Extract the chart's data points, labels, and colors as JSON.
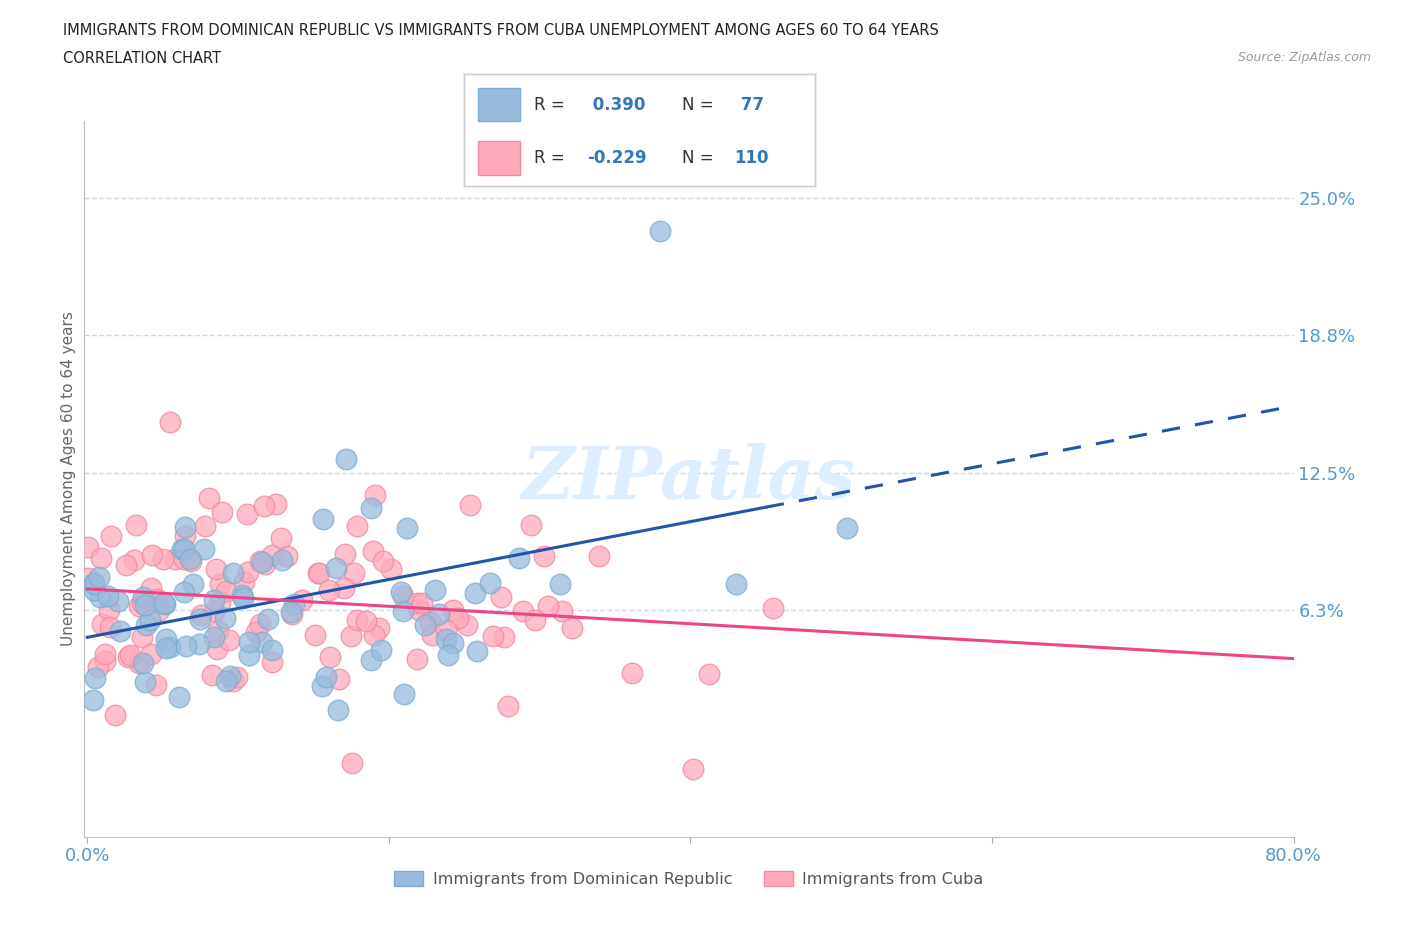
{
  "title_line1": "IMMIGRANTS FROM DOMINICAN REPUBLIC VS IMMIGRANTS FROM CUBA UNEMPLOYMENT AMONG AGES 60 TO 64 YEARS",
  "title_line2": "CORRELATION CHART",
  "source_text": "Source: ZipAtlas.com",
  "ylabel": "Unemployment Among Ages 60 to 64 years",
  "background_color": "#ffffff",
  "grid_color": "#c8daea",
  "axis_color": "#5599cc",
  "watermark_color": "#ddeeff",
  "series": [
    {
      "label": "Immigrants from Dominican Republic",
      "color": "#99bbdd",
      "edge_color": "#7aadce",
      "R": 0.39,
      "N": 77
    },
    {
      "label": "Immigrants from Cuba",
      "color": "#ffaabb",
      "edge_color": "#f088a0",
      "R": -0.229,
      "N": 110
    }
  ],
  "dr_trend_color": "#2255aa",
  "cuba_trend_color": "#ee4488",
  "title_color": "#222222",
  "legend_text_color": "#333333",
  "legend_value_color": "#3377bb"
}
